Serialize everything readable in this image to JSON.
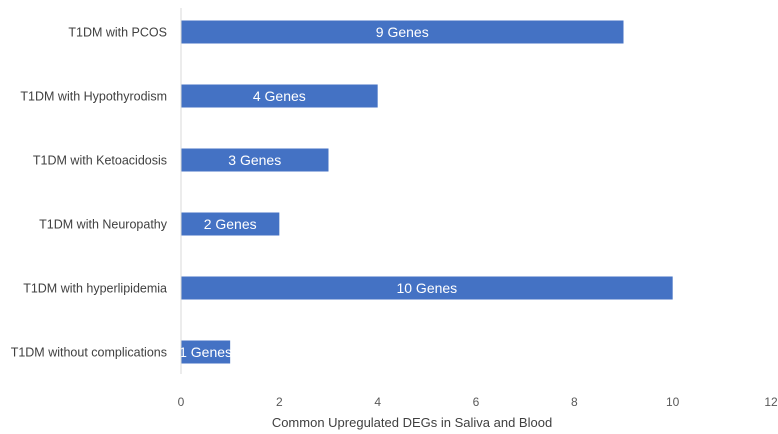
{
  "chart_data": {
    "type": "bar",
    "orientation": "horizontal",
    "categories": [
      "T1DM with PCOS",
      "T1DM with Hypothyrodism",
      "T1DM with Ketoacidosis",
      "T1DM with Neuropathy",
      "T1DM with hyperlipidemia",
      "T1DM without complications"
    ],
    "values": [
      9,
      4,
      3,
      2,
      10,
      1
    ],
    "data_labels": [
      "9 Genes",
      "4 Genes",
      "3 Genes",
      "2 Genes",
      "10 Genes",
      "1 Genes"
    ],
    "title": "",
    "xlabel": "Common Upregulated DEGs in Saliva and Blood",
    "ylabel": "",
    "xlim": [
      0,
      12
    ],
    "xticks": [
      0,
      2,
      4,
      6,
      8,
      10,
      12
    ],
    "grid": false,
    "legend": "none",
    "bar_color": "#4472C4",
    "axis_color": "#D9D9D9"
  }
}
